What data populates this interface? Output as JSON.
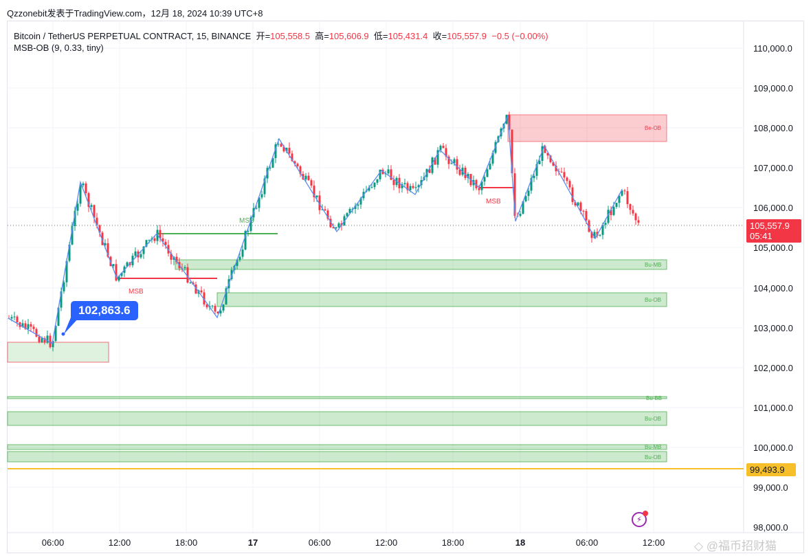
{
  "caption": "Qzzonebit发表于TradingView.com，12月 18, 2024 10:39 UTC+8",
  "legend": {
    "symbol": "Bitcoin / TetherUS PERPETUAL CONTRACT, 15, BINANCE",
    "open_label": "开=",
    "open": "105,558.5",
    "high_label": "高=",
    "high": "105,606.9",
    "low_label": "低=",
    "low": "105,431.4",
    "close_label": "收=",
    "close": "105,557.9",
    "change": "−0.5 (−0.00%)",
    "indicator": "MSB-OB (9, 0.33, tiny)"
  },
  "price_axis": [
    "110,000.0",
    "109,000.0",
    "108,000.0",
    "107,000.0",
    "106,000.0",
    "105,000.0",
    "104,000.0",
    "103,000.0",
    "102,000.0",
    "101,000.0",
    "100,000.0",
    "99,000.0",
    "98,000.0"
  ],
  "time_axis": [
    "06:00",
    "12:00",
    "18:00",
    "17",
    "06:00",
    "12:00",
    "18:00",
    "18",
    "06:00",
    "12:00"
  ],
  "last_price_tag": {
    "price": "105,557.9",
    "countdown": "05:41"
  },
  "horizontal_line_tag": "99,493.9",
  "callout": "102,863.6",
  "zones": {
    "be_ob": "Be-OB",
    "bu_mb": "Bu-MB",
    "bu_ob": "Bu-OB",
    "bu_bb": "Bu-BB",
    "msb": "MSB"
  },
  "watermark": "@福币招财猫",
  "colors": {
    "up": "#089981",
    "down": "#f23645",
    "zigzag": "#5b8def",
    "bull_zone": "#4caf50",
    "bear_zone": "#f23645",
    "hline": "#f7c02b",
    "callout": "#2962ff"
  },
  "chart_data": {
    "type": "candlestick",
    "title": "Bitcoin / TetherUS PERPETUAL CONTRACT, 15, BINANCE",
    "interval": "15",
    "ohlc_last": {
      "open": 105558.5,
      "high": 105606.9,
      "low": 105431.4,
      "close": 105557.9,
      "change": -0.5,
      "change_pct": -0.0
    },
    "ylim": [
      97800,
      110300
    ],
    "yticks": [
      98000,
      99000,
      100000,
      101000,
      102000,
      103000,
      104000,
      105000,
      106000,
      107000,
      108000,
      109000,
      110000
    ],
    "xticks": [
      "06:00",
      "12:00",
      "18:00",
      "17",
      "06:00",
      "12:00",
      "18:00",
      "18",
      "06:00",
      "12:00"
    ],
    "zigzag_pivots": [
      {
        "t": "Dec16 02:00",
        "price": 103150
      },
      {
        "t": "Dec16 05:00",
        "price": 102580
      },
      {
        "t": "Dec16 07:30",
        "price": 106650
      },
      {
        "t": "Dec16 11:00",
        "price": 104250
      },
      {
        "t": "Dec16 15:00",
        "price": 105380
      },
      {
        "t": "Dec16 21:00",
        "price": 103280
      },
      {
        "t": "Dec17 02:30",
        "price": 107770
      },
      {
        "t": "Dec17 08:00",
        "price": 105450
      },
      {
        "t": "Dec17 12:00",
        "price": 106980
      },
      {
        "t": "Dec17 15:00",
        "price": 106380
      },
      {
        "t": "Dec17 17:30",
        "price": 107480
      },
      {
        "t": "Dec17 21:00",
        "price": 106540
      },
      {
        "t": "Dec17 23:45",
        "price": 108350
      },
      {
        "t": "Dec18 00:30",
        "price": 105700
      },
      {
        "t": "Dec18 03:00",
        "price": 107600
      },
      {
        "t": "Dec18 07:30",
        "price": 105270
      },
      {
        "t": "Dec18 10:00",
        "price": 106480
      }
    ],
    "zones": [
      {
        "label": "Be-OB",
        "type": "bearish",
        "top": 108350,
        "bottom": 107680
      },
      {
        "label": "Bu-MB",
        "type": "bullish",
        "top": 104720,
        "bottom": 104470
      },
      {
        "label": "Bu-OB",
        "type": "bullish",
        "top": 103860,
        "bottom": 103500
      },
      {
        "label": "Bu-BB",
        "type": "bullish",
        "top": 101270,
        "bottom": 101220
      },
      {
        "label": "Bu-OB",
        "type": "bullish",
        "top": 100920,
        "bottom": 100560
      },
      {
        "label": "Bu-MB",
        "type": "bullish",
        "top": 100080,
        "bottom": 99960
      },
      {
        "label": "Bu-OB",
        "type": "bullish",
        "top": 99930,
        "bottom": 99660
      },
      {
        "label": "(unlabeled)",
        "type": "bullish",
        "top": 102660,
        "bottom": 102170
      }
    ],
    "msb_lines": [
      {
        "label": "MSB",
        "type": "bearish",
        "price": 104250
      },
      {
        "label": "MSB",
        "type": "bullish",
        "price": 105380
      },
      {
        "label": "MSB",
        "type": "bearish",
        "price": 106540
      }
    ],
    "horizontal_line": 99493.9,
    "last_price": 105557.9,
    "callout_price": 102863.6
  }
}
